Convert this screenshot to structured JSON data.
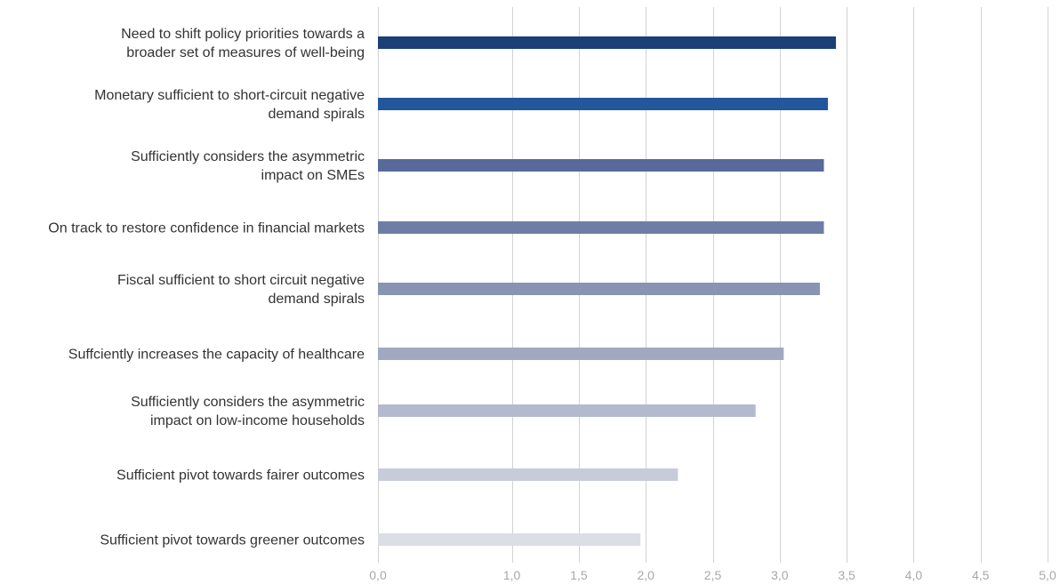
{
  "chart_data": {
    "type": "bar",
    "orientation": "horizontal",
    "title": "",
    "xlabel": "",
    "ylabel": "",
    "xlim": [
      0,
      5
    ],
    "grid": "vertical",
    "legend": "none",
    "ticks": [
      "0,0",
      "1,0",
      "1,5",
      "2,0",
      "2,5",
      "3,0",
      "3,5",
      "4,0",
      "4,5",
      "5,0"
    ],
    "tick_values": [
      0,
      1.0,
      1.5,
      2.0,
      2.5,
      3.0,
      3.5,
      4.0,
      4.5,
      5.0
    ],
    "categories": [
      [
        "Need to shift policy priorities towards a",
        "broader set of measures of well-being"
      ],
      [
        "Monetary sufficient to short-circuit negative",
        "demand spirals"
      ],
      [
        "Sufficiently considers the asymmetric",
        "impact on SMEs"
      ],
      [
        "On track to restore confidence in financial markets"
      ],
      [
        "Fiscal sufficient to short circuit negative",
        "demand spirals"
      ],
      [
        "Suffciently increases the capacity of healthcare"
      ],
      [
        "Sufficiently considers the asymmetric",
        "impact on low-income households"
      ],
      [
        "Sufficient pivot towards fairer outcomes"
      ],
      [
        "Sufficient pivot towards greener outcomes"
      ]
    ],
    "values": [
      3.42,
      3.36,
      3.33,
      3.33,
      3.3,
      3.03,
      2.82,
      2.24,
      1.96
    ],
    "colors": [
      "#1b3f77",
      "#22579b",
      "#586a9b",
      "#6d7da5",
      "#8894b3",
      "#a0a9c1",
      "#b3bace",
      "#c8ccd9",
      "#dcdee6"
    ]
  }
}
